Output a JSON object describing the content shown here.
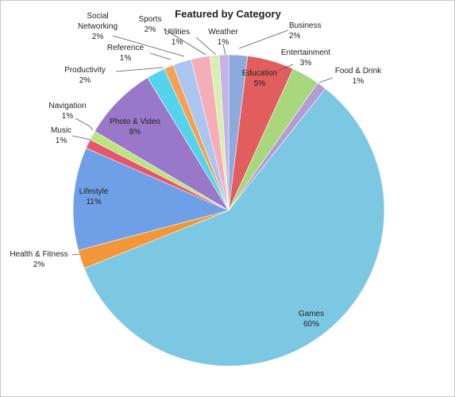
{
  "chart_data": {
    "type": "pie",
    "title": "Featured by Category",
    "slices": [
      {
        "label": "Business",
        "value": 2,
        "color": "#8EAADC"
      },
      {
        "label": "Education",
        "value": 5,
        "color": "#E25D5D"
      },
      {
        "label": "Entertainment",
        "value": 3,
        "color": "#A8D77E"
      },
      {
        "label": "Food & Drink",
        "value": 1,
        "color": "#B49BD4"
      },
      {
        "label": "Games",
        "value": 60,
        "color": "#7CC7E2"
      },
      {
        "label": "Health & Fitness",
        "value": 2,
        "color": "#F2963A"
      },
      {
        "label": "Lifestyle",
        "value": 11,
        "color": "#6F9FE6"
      },
      {
        "label": "Music",
        "value": 1,
        "color": "#E8556A"
      },
      {
        "label": "Navigation",
        "value": 1,
        "color": "#B9E47F"
      },
      {
        "label": "Photo & Video",
        "value": 8,
        "color": "#9A78C9"
      },
      {
        "label": "Productivity",
        "value": 2,
        "color": "#55D3EC"
      },
      {
        "label": "Reference",
        "value": 1,
        "color": "#F5A055"
      },
      {
        "label": "Social Networking",
        "value": 2,
        "color": "#A9C6F2"
      },
      {
        "label": "Sports",
        "value": 2,
        "color": "#F5AEB8"
      },
      {
        "label": "Utilities",
        "value": 1,
        "color": "#D8EFB0"
      },
      {
        "label": "Weather",
        "value": 1,
        "color": "#C6B2E6"
      }
    ],
    "value_suffix": "%",
    "legend": "none"
  }
}
